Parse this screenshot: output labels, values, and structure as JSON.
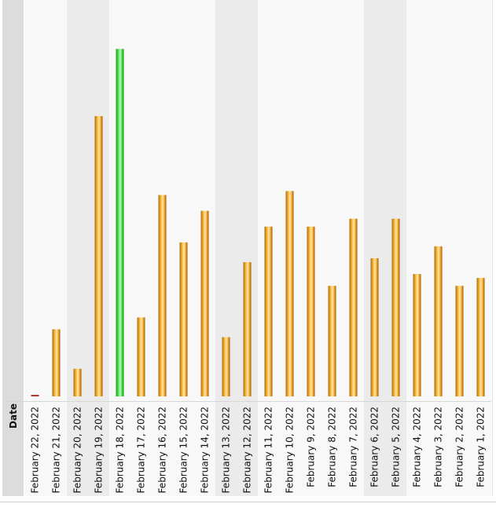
{
  "chart_data": {
    "type": "bar",
    "xlabel": "Date",
    "ylabel": "",
    "title": "",
    "categories": [
      "February 22, 2022",
      "February 21, 2022",
      "February 20, 2022",
      "February 19, 2022",
      "February 18, 2022",
      "February 17, 2022",
      "February 16, 2022",
      "February 15, 2022",
      "February 14, 2022",
      "February 13, 2022",
      "February 12, 2022",
      "February 11, 2022",
      "February 10, 2022",
      "February 9, 2022",
      "February 8, 2022",
      "February 7, 2022",
      "February 6, 2022",
      "February 5, 2022",
      "February 4, 2022",
      "February 3, 2022",
      "February 2, 2022",
      "February 1, 2022"
    ],
    "values": [
      0.2,
      17,
      7,
      71,
      88,
      20,
      51,
      39,
      47,
      15,
      34,
      43,
      52,
      43,
      28,
      45,
      35,
      45,
      31,
      38,
      28,
      30
    ],
    "ylim": [
      0,
      100
    ],
    "highlight_index": 4,
    "weekend_indices": [
      2,
      3,
      9,
      10,
      16,
      17
    ],
    "colors": {
      "bar": "#f0a020",
      "highlight": "#44dd44",
      "weekend_band": "#ebebeb",
      "weekday_band": "#f8f8f8"
    },
    "grid": false
  }
}
